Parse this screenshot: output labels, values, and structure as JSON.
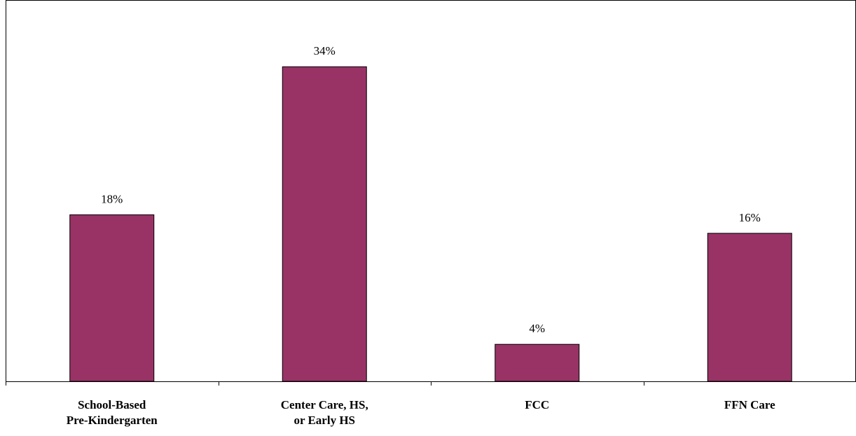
{
  "chart_data": {
    "type": "bar",
    "title": "",
    "xlabel": "",
    "ylabel": "",
    "categories": [
      [
        "School-Based",
        "Pre-Kindergarten"
      ],
      [
        "Center Care, HS,",
        "or Early HS"
      ],
      [
        "FCC"
      ],
      [
        "FFN Care"
      ]
    ],
    "values": [
      18,
      34,
      4,
      16
    ],
    "value_labels": [
      "18%",
      "34%",
      "4%",
      "16%"
    ],
    "ylim": [
      0,
      38
    ],
    "grid": false,
    "legend": "none",
    "bar_color": "#993366",
    "bar_edge_color": "#000000"
  }
}
